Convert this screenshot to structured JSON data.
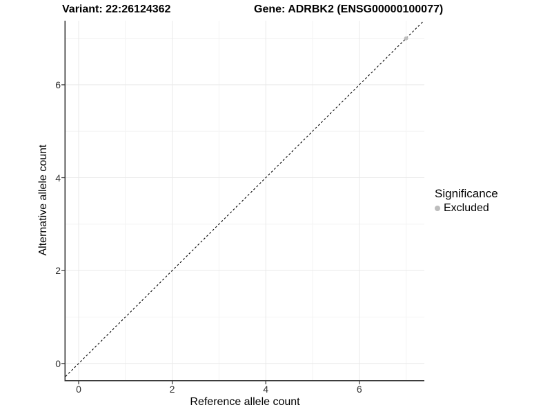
{
  "titles": {
    "variant": "Variant: 22:26124362",
    "gene": "Gene: ADRBK2 (ENSG00000100077)"
  },
  "legend": {
    "title": "Significance",
    "items": [
      {
        "label": "Excluded",
        "color": "#bdbdbd"
      }
    ]
  },
  "colors": {
    "axis_line": "#333333",
    "tick_text": "#303030",
    "grid_major": "#e9e9e9",
    "grid_minor": "#f3f3f3",
    "reference_line": "#000000",
    "point_excluded": "#bdbdbd",
    "background": "#ffffff"
  },
  "chart_data": {
    "type": "scatter",
    "title": "Variant: 22:26124362   |   Gene: ADRBK2 (ENSG00000100077)",
    "xlabel": "Reference allele count",
    "ylabel": "Alternative allele count",
    "xlim": [
      -0.28,
      7.39
    ],
    "ylim": [
      -0.36,
      7.38
    ],
    "xticks": [
      0,
      2,
      4,
      6
    ],
    "yticks": [
      0,
      2,
      4,
      6
    ],
    "x_minor_gridlines": [
      1,
      3,
      5,
      7
    ],
    "y_minor_gridlines": [
      1,
      3,
      5,
      7
    ],
    "grid": true,
    "legend_title": "Significance",
    "legend_position": "right",
    "series": [
      {
        "name": "Excluded",
        "color": "#bdbdbd",
        "points": [
          {
            "x": 7,
            "y": 7
          }
        ]
      }
    ],
    "reference_line": {
      "kind": "abline",
      "slope": 1,
      "intercept": 0,
      "linestyle": "dashed",
      "color": "#000000"
    }
  }
}
